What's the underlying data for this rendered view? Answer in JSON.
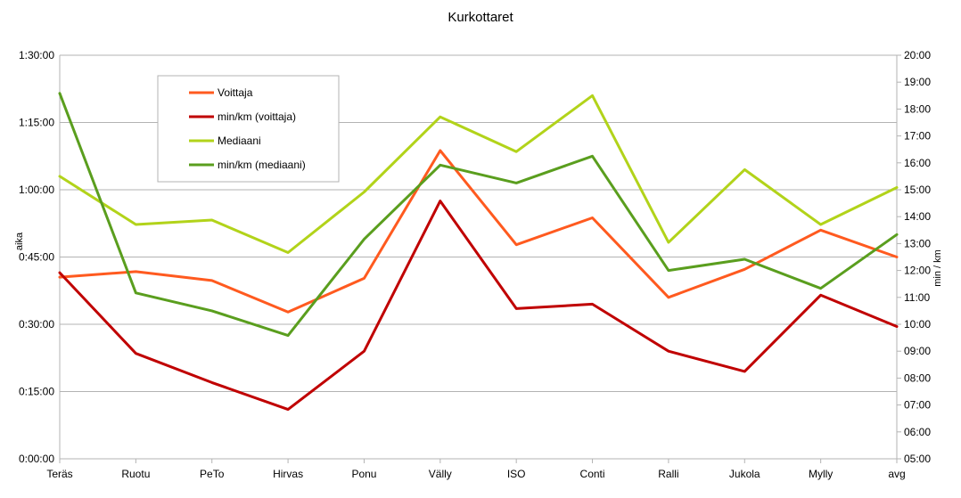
{
  "chart_data": {
    "type": "line",
    "title": "Kurkottaret",
    "ylabel": "aika",
    "y2label": "min / km",
    "categories": [
      "Teräs",
      "Ruotu",
      "PeTo",
      "Hirvas",
      "Ponu",
      "Välly",
      "ISO",
      "Conti",
      "Ralli",
      "Jukola",
      "Mylly",
      "avg"
    ],
    "y_ticks": [
      "0:00:00",
      "0:15:00",
      "0:30:00",
      "0:45:00",
      "1:00:00",
      "1:15:00",
      "1:30:00"
    ],
    "y2_ticks": [
      "05:00",
      "06:00",
      "07:00",
      "08:00",
      "09:00",
      "10:00",
      "11:00",
      "12:00",
      "13:00",
      "14:00",
      "15:00",
      "16:00",
      "17:00",
      "18:00",
      "19:00",
      "20:00"
    ],
    "ylim": [
      0,
      90
    ],
    "y2lim": [
      5,
      20
    ],
    "grid": "horizontal",
    "legend_position": "top-left",
    "series": [
      {
        "name": "Voittaja",
        "axis": "left",
        "color": "#ff5a1f",
        "values": [
          "0:40:30",
          "0:41:45",
          "0:39:45",
          "0:32:45",
          "0:40:15",
          "1:08:45",
          "0:47:45",
          "0:53:45",
          "0:36:00",
          "0:42:15",
          "0:51:00",
          "0:45:00"
        ]
      },
      {
        "name": "min/km (voittaja)",
        "axis": "right",
        "color": "#c00000",
        "values": [
          "11:55",
          "08:55",
          "07:50",
          "06:50",
          "09:00",
          "14:35",
          "10:35",
          "10:45",
          "09:00",
          "08:15",
          "11:05",
          "09:55"
        ]
      },
      {
        "name": "Mediaani",
        "axis": "left",
        "color": "#b2d31a",
        "values": [
          "1:03:00",
          "0:52:15",
          "0:53:15",
          "0:46:00",
          "0:59:30",
          "1:16:15",
          "1:08:30",
          "1:21:00",
          "0:48:15",
          "1:04:30",
          "0:52:15",
          "1:00:30"
        ]
      },
      {
        "name": "min/km (mediaani)",
        "axis": "right",
        "color": "#5a9e1e",
        "values": [
          "18:35",
          "11:10",
          "10:30",
          "09:35",
          "13:10",
          "15:55",
          "15:15",
          "16:15",
          "12:00",
          "12:25",
          "11:20",
          "13:20"
        ]
      }
    ]
  }
}
